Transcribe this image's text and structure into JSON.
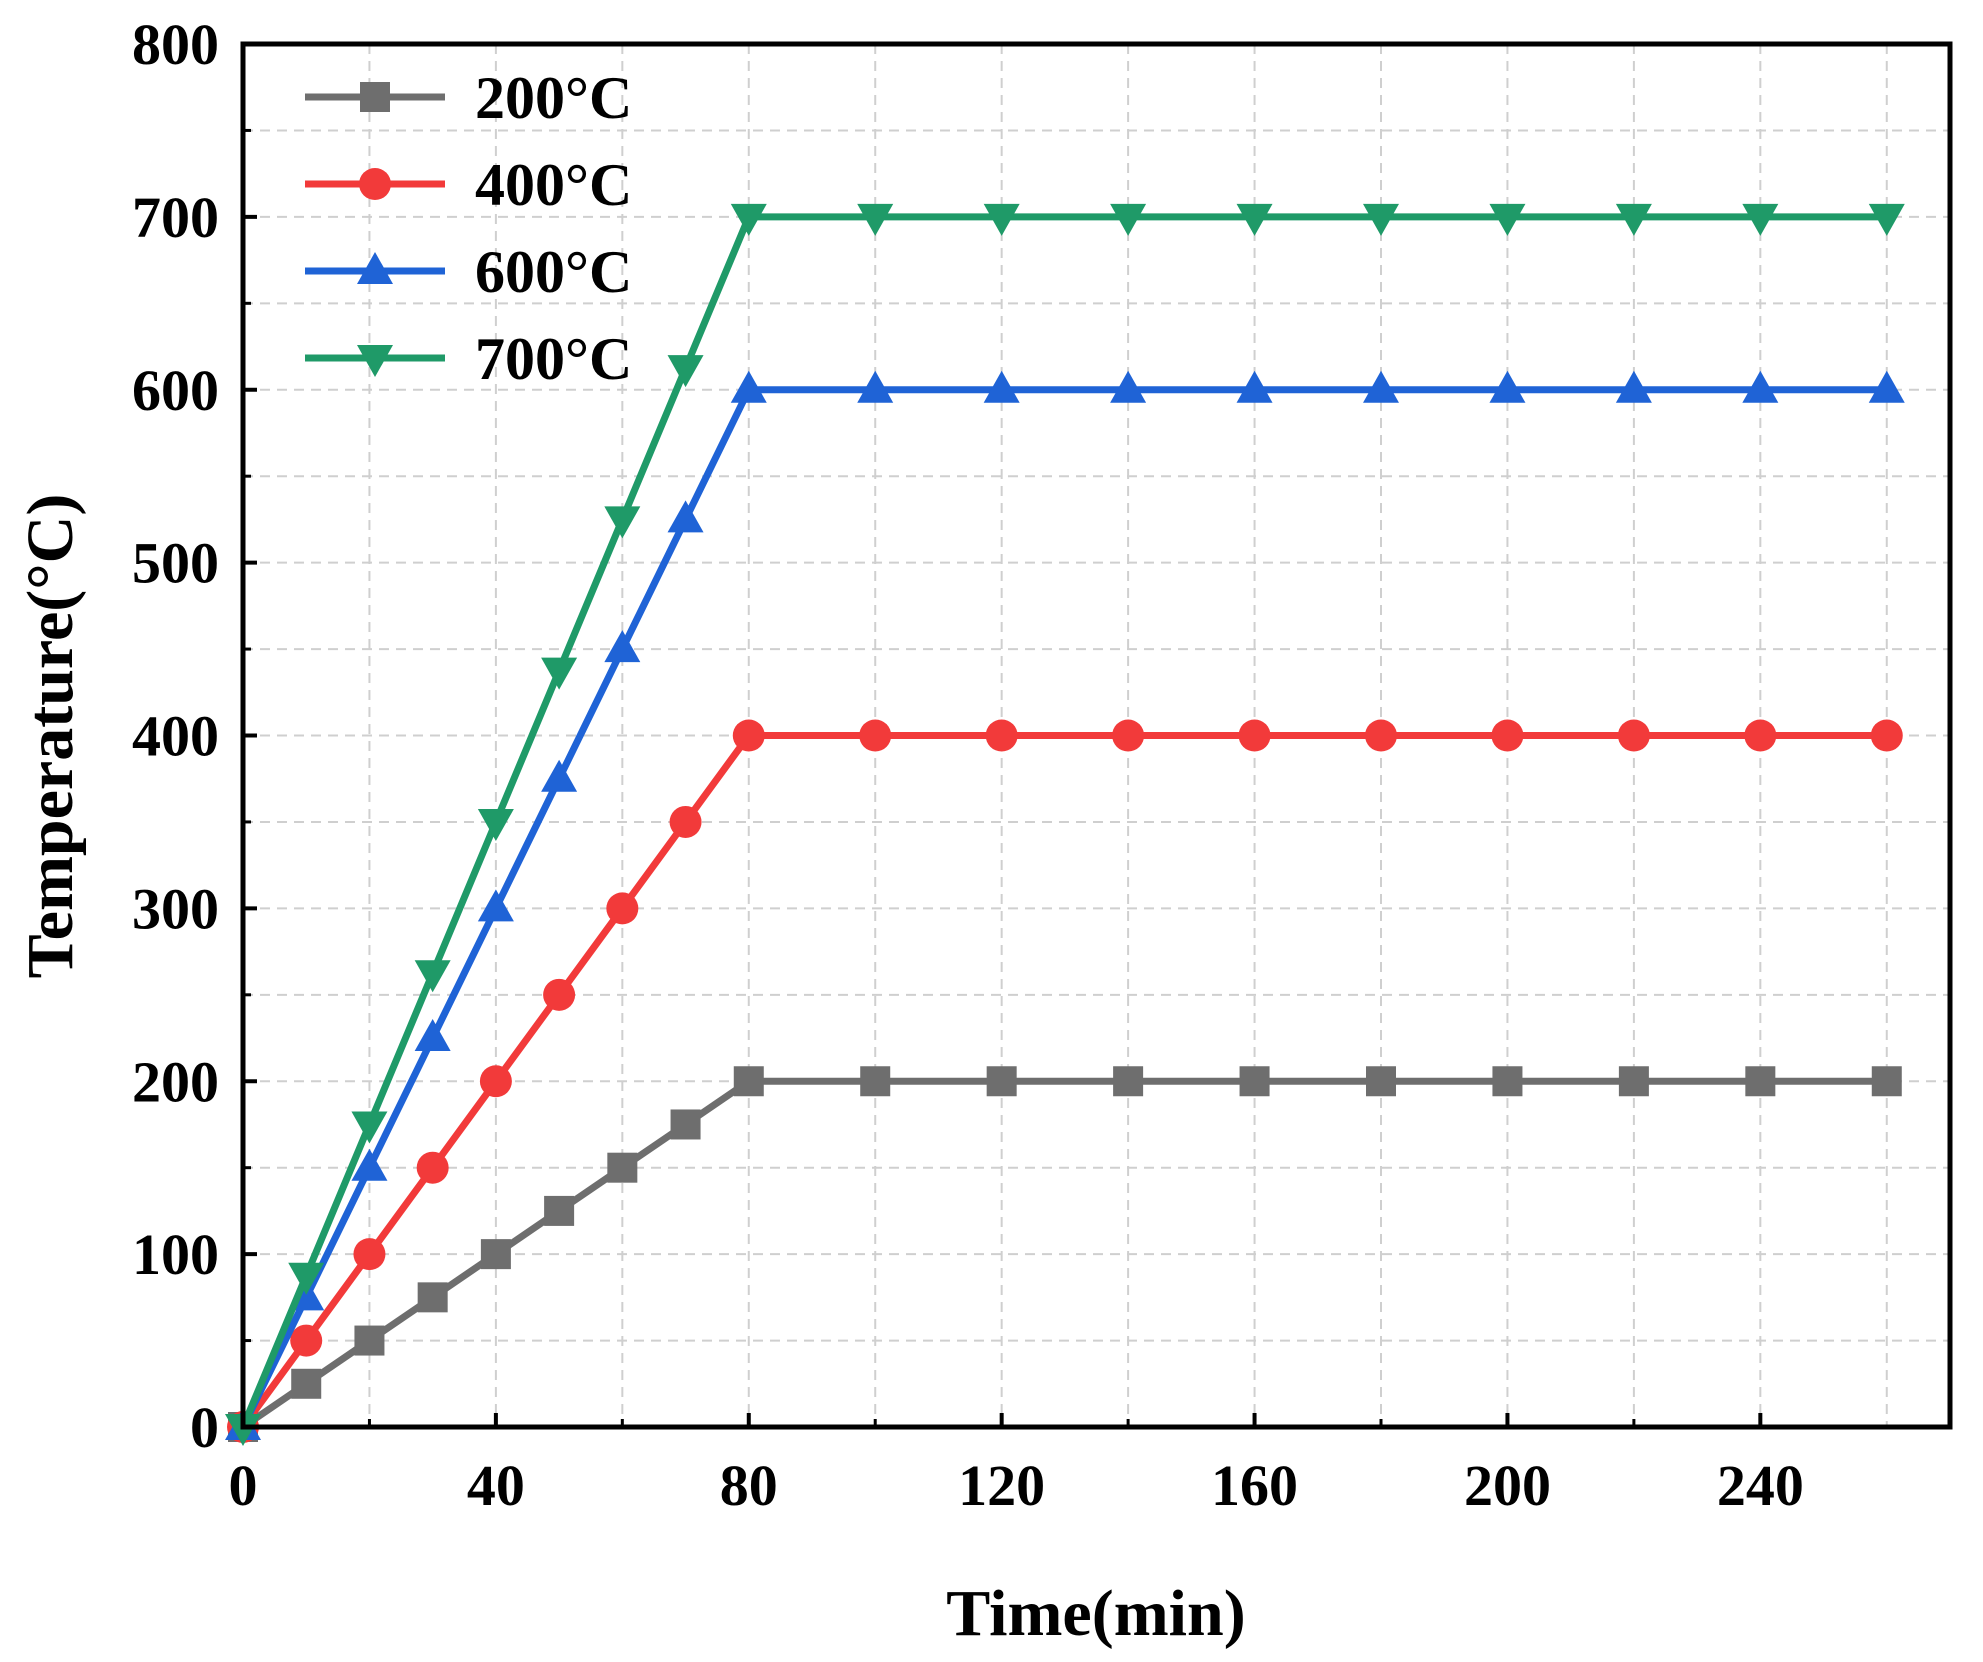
{
  "chart_data": {
    "type": "line",
    "title": "",
    "xlabel": "Time(min)",
    "ylabel": "Temperature(°C)",
    "xlim": [
      0,
      270
    ],
    "ylim": [
      0,
      800
    ],
    "xticks": [
      0,
      40,
      80,
      120,
      160,
      200,
      240
    ],
    "yticks": [
      0,
      100,
      200,
      300,
      400,
      500,
      600,
      700,
      800
    ],
    "grid": true,
    "legend_position": "top-left",
    "series": [
      {
        "name": "200°C",
        "color": "#6e6e6e",
        "marker": "square",
        "x": [
          0,
          10,
          20,
          30,
          40,
          50,
          60,
          70,
          80,
          100,
          120,
          140,
          160,
          180,
          200,
          220,
          240,
          260
        ],
        "y": [
          0,
          25,
          50,
          75,
          100,
          125,
          150,
          175,
          200,
          200,
          200,
          200,
          200,
          200,
          200,
          200,
          200,
          200
        ]
      },
      {
        "name": "400°C",
        "color": "#f23a3a",
        "marker": "circle",
        "x": [
          0,
          10,
          20,
          30,
          40,
          50,
          60,
          70,
          80,
          100,
          120,
          140,
          160,
          180,
          200,
          220,
          240,
          260
        ],
        "y": [
          0,
          50,
          100,
          150,
          200,
          250,
          300,
          350,
          400,
          400,
          400,
          400,
          400,
          400,
          400,
          400,
          400,
          400
        ]
      },
      {
        "name": "600°C",
        "color": "#1f63d6",
        "marker": "triangle-up",
        "x": [
          0,
          10,
          20,
          30,
          40,
          50,
          60,
          70,
          80,
          100,
          120,
          140,
          160,
          180,
          200,
          220,
          240,
          260
        ],
        "y": [
          0,
          75,
          150,
          225,
          300,
          375,
          450,
          525,
          600,
          600,
          600,
          600,
          600,
          600,
          600,
          600,
          600,
          600
        ]
      },
      {
        "name": "700°C",
        "color": "#1f9a68",
        "marker": "triangle-down",
        "x": [
          0,
          10,
          20,
          30,
          40,
          50,
          60,
          70,
          80,
          100,
          120,
          140,
          160,
          180,
          200,
          220,
          240,
          260
        ],
        "y": [
          0,
          87.5,
          175,
          262.5,
          350,
          437.5,
          525,
          612.5,
          700,
          700,
          700,
          700,
          700,
          700,
          700,
          700,
          700,
          700
        ]
      }
    ]
  }
}
